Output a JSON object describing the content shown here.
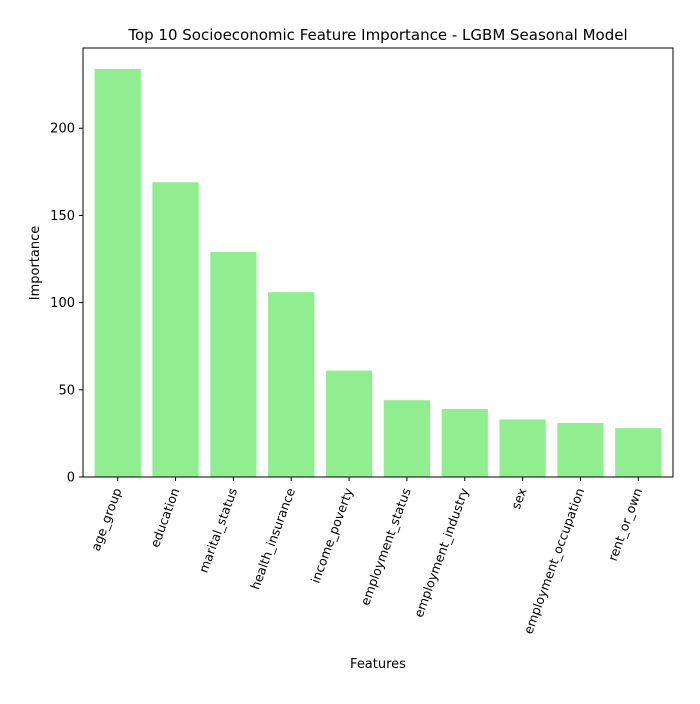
{
  "chart_data": {
    "type": "bar",
    "title": "Top 10 Socioeconomic Feature Importance - LGBM Seasonal Model",
    "xlabel": "Features",
    "ylabel": "Importance",
    "categories": [
      "age_group",
      "education",
      "marital_status",
      "health_insurance",
      "income_poverty",
      "employment_status",
      "employment_industry",
      "sex",
      "employment_occupation",
      "rent_or_own"
    ],
    "values": [
      234,
      169,
      129,
      106,
      61,
      44,
      39,
      33,
      31,
      28
    ],
    "ylim": [
      0,
      246
    ],
    "yticks": [
      0,
      50,
      100,
      150,
      200
    ],
    "grid": false,
    "bar_color": "#90ee90"
  }
}
